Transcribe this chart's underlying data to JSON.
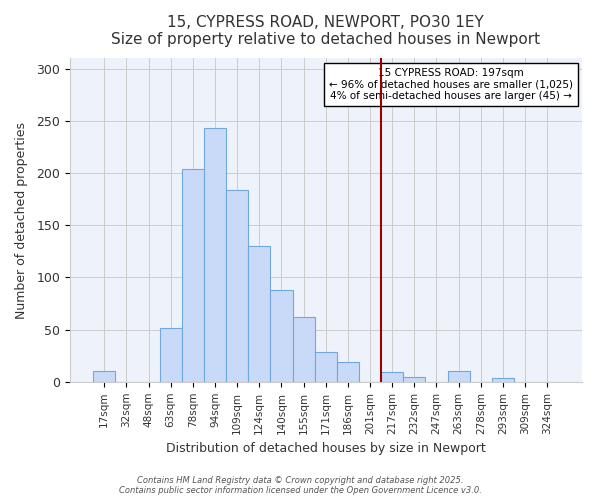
{
  "title": "15, CYPRESS ROAD, NEWPORT, PO30 1EY",
  "subtitle": "Size of property relative to detached houses in Newport",
  "xlabel": "Distribution of detached houses by size in Newport",
  "ylabel": "Number of detached properties",
  "bar_labels": [
    "17sqm",
    "32sqm",
    "48sqm",
    "63sqm",
    "78sqm",
    "94sqm",
    "109sqm",
    "124sqm",
    "140sqm",
    "155sqm",
    "171sqm",
    "186sqm",
    "201sqm",
    "217sqm",
    "232sqm",
    "247sqm",
    "263sqm",
    "278sqm",
    "293sqm",
    "309sqm",
    "324sqm"
  ],
  "bar_values": [
    10,
    0,
    0,
    52,
    204,
    243,
    184,
    130,
    88,
    62,
    29,
    19,
    0,
    9,
    5,
    0,
    10,
    0,
    4,
    0,
    0
  ],
  "bar_color": "#c9daf8",
  "bar_edge_color": "#6fa8dc",
  "ax_facecolor": "#eef3fb",
  "ylim": [
    0,
    310
  ],
  "yticks": [
    0,
    50,
    100,
    150,
    200,
    250,
    300
  ],
  "vline_x": 12.5,
  "vline_color": "#990000",
  "annotation_title": "15 CYPRESS ROAD: 197sqm",
  "annotation_line1": "← 96% of detached houses are smaller (1,025)",
  "annotation_line2": "4% of semi-detached houses are larger (45) →",
  "footer1": "Contains HM Land Registry data © Crown copyright and database right 2025.",
  "footer2": "Contains public sector information licensed under the Open Government Licence v3.0.",
  "background_color": "#ffffff",
  "grid_color": "#cccccc"
}
